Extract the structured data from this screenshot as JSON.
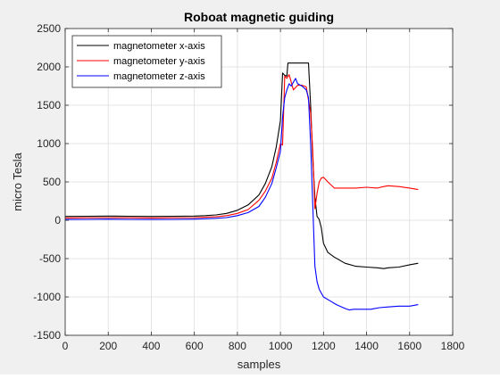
{
  "chart_data": {
    "type": "line",
    "title": "Roboat magnetic guiding",
    "xlabel": "samples",
    "ylabel": "micro Tesla",
    "xlim": [
      0,
      1800
    ],
    "ylim": [
      -1500,
      2500
    ],
    "xticks": [
      0,
      200,
      400,
      600,
      800,
      1000,
      1200,
      1400,
      1600,
      1800
    ],
    "yticks": [
      -1500,
      -1000,
      -500,
      0,
      500,
      1000,
      1500,
      2000,
      2500
    ],
    "grid": true,
    "legend_position": "top-left",
    "series": [
      {
        "name": "magnetometer x-axis",
        "color": "#000000",
        "x": [
          0,
          100,
          200,
          300,
          400,
          500,
          600,
          650,
          700,
          750,
          800,
          850,
          900,
          930,
          960,
          980,
          1000,
          1010,
          1020,
          1030,
          1035,
          1100,
          1130,
          1140,
          1150,
          1160,
          1170,
          1180,
          1190,
          1200,
          1220,
          1250,
          1300,
          1350,
          1400,
          1450,
          1480,
          1500,
          1550,
          1600,
          1640
        ],
        "y": [
          50,
          52,
          55,
          52,
          50,
          52,
          55,
          60,
          70,
          90,
          130,
          200,
          330,
          480,
          700,
          950,
          1300,
          1920,
          1890,
          1880,
          2050,
          2050,
          2050,
          1500,
          800,
          300,
          50,
          10,
          -100,
          -300,
          -420,
          -480,
          -560,
          -600,
          -610,
          -620,
          -630,
          -620,
          -610,
          -580,
          -560
        ]
      },
      {
        "name": "magnetometer y-axis",
        "color": "#ff0000",
        "x": [
          0,
          100,
          200,
          300,
          400,
          500,
          600,
          650,
          700,
          750,
          800,
          850,
          900,
          930,
          960,
          980,
          1000,
          1010,
          1020,
          1030,
          1040,
          1050,
          1060,
          1080,
          1100,
          1120,
          1140,
          1150,
          1160,
          1170,
          1180,
          1190,
          1200,
          1220,
          1250,
          1300,
          1350,
          1400,
          1450,
          1480,
          1500,
          1550,
          1600,
          1640
        ],
        "y": [
          30,
          32,
          35,
          32,
          30,
          32,
          35,
          40,
          45,
          60,
          90,
          140,
          260,
          380,
          550,
          750,
          1000,
          980,
          1880,
          1850,
          1900,
          1800,
          1700,
          1760,
          1760,
          1740,
          1400,
          900,
          150,
          350,
          500,
          550,
          560,
          500,
          420,
          420,
          420,
          430,
          420,
          440,
          450,
          440,
          420,
          400
        ]
      },
      {
        "name": "magnetometer z-axis",
        "color": "#0000ff",
        "x": [
          0,
          100,
          200,
          300,
          400,
          500,
          600,
          650,
          700,
          750,
          800,
          850,
          900,
          930,
          960,
          980,
          1000,
          1010,
          1020,
          1030,
          1040,
          1050,
          1060,
          1070,
          1080,
          1100,
          1120,
          1130,
          1140,
          1150,
          1160,
          1170,
          1180,
          1200,
          1230,
          1260,
          1300,
          1320,
          1340,
          1380,
          1420,
          1460,
          1500,
          1550,
          1600,
          1640
        ],
        "y": [
          10,
          12,
          15,
          12,
          10,
          12,
          15,
          20,
          25,
          35,
          60,
          100,
          180,
          300,
          480,
          680,
          900,
          1350,
          1600,
          1700,
          1780,
          1750,
          1800,
          1850,
          1780,
          1750,
          1700,
          1600,
          1000,
          200,
          -600,
          -800,
          -900,
          -1000,
          -1050,
          -1100,
          -1150,
          -1170,
          -1160,
          -1160,
          -1160,
          -1140,
          -1130,
          -1120,
          -1120,
          -1100
        ]
      }
    ]
  }
}
